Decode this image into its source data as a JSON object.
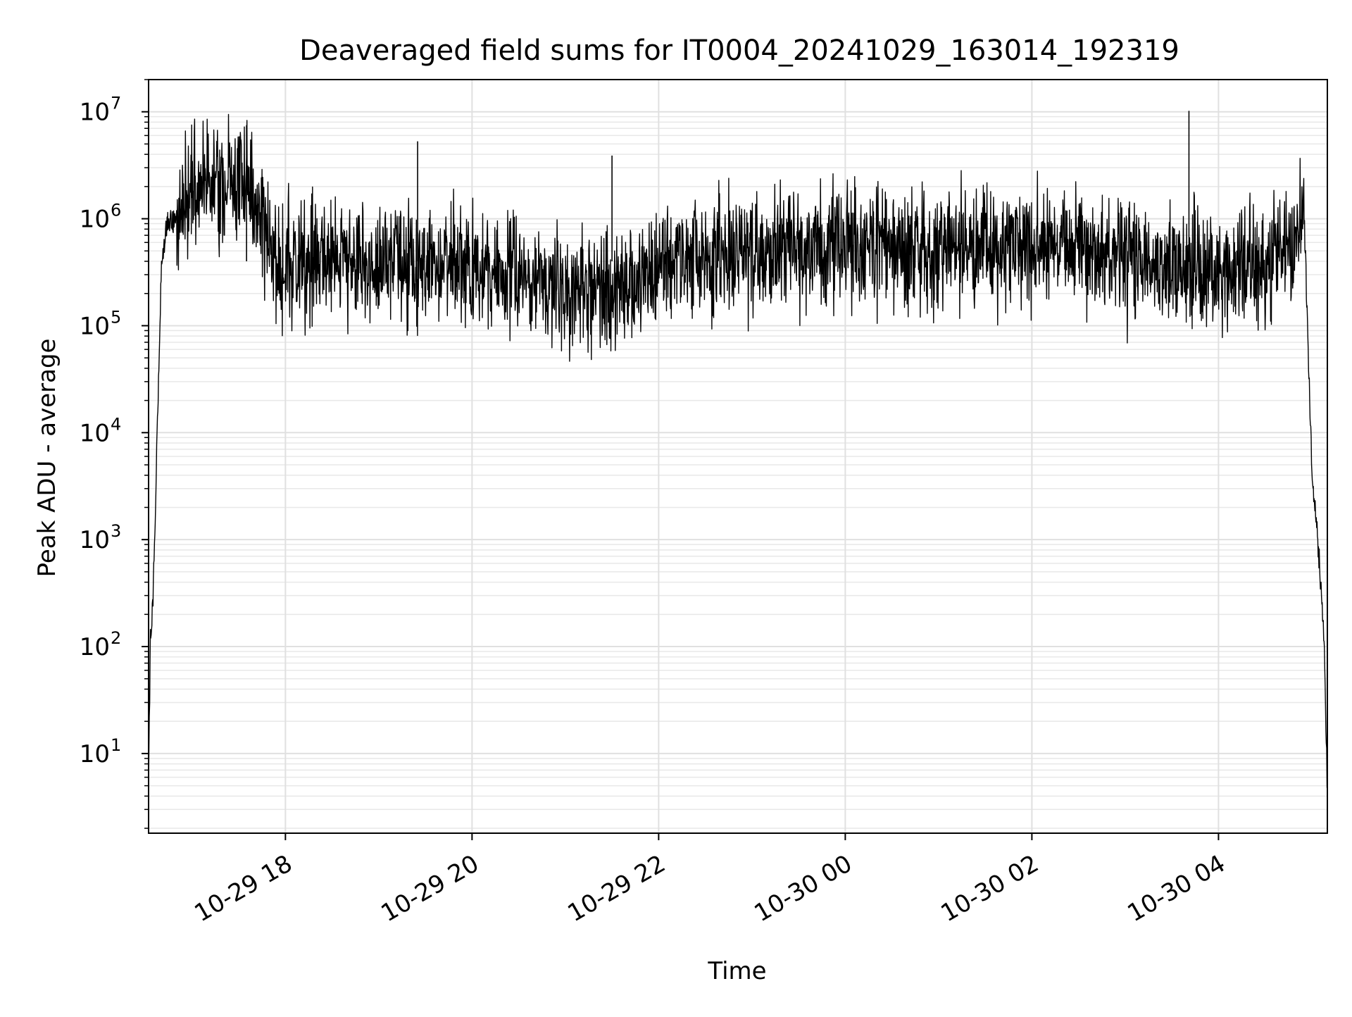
{
  "chart_data": {
    "type": "line",
    "title": "Deaveraged field sums for IT0004_20241029_163014_192319",
    "xlabel": "Time",
    "ylabel": "Peak ADU - average",
    "y_scale": "log",
    "ylim": [
      1.8,
      20000000
    ],
    "xlim": [
      "2024-10-29 16:32",
      "2024-10-30 05:10"
    ],
    "grid": "both (major and minor y)",
    "legend": "none",
    "line_color": "#000000",
    "x_ticks": [
      {
        "value": "2024-10-29 18:00",
        "label": "10-29 18"
      },
      {
        "value": "2024-10-29 20:00",
        "label": "10-29 20"
      },
      {
        "value": "2024-10-29 22:00",
        "label": "10-29 22"
      },
      {
        "value": "2024-10-30 00:00",
        "label": "10-30 00"
      },
      {
        "value": "2024-10-30 02:00",
        "label": "10-30 02"
      },
      {
        "value": "2024-10-30 04:00",
        "label": "10-30 04"
      }
    ],
    "y_ticks": [
      {
        "value": 10,
        "base": "10",
        "exp": "1"
      },
      {
        "value": 100,
        "base": "10",
        "exp": "2"
      },
      {
        "value": 1000,
        "base": "10",
        "exp": "3"
      },
      {
        "value": 10000,
        "base": "10",
        "exp": "4"
      },
      {
        "value": 100000,
        "base": "10",
        "exp": "5"
      },
      {
        "value": 1000000,
        "base": "10",
        "exp": "6"
      },
      {
        "value": 10000000,
        "base": "10",
        "exp": "7"
      }
    ],
    "series": [
      {
        "x": [
          "2024-10-29 16:32",
          "2024-10-29 16:33",
          "2024-10-29 16:35",
          "2024-10-29 16:37",
          "2024-10-29 16:40",
          "2024-10-29 16:43",
          "2024-10-29 16:46",
          "2024-10-29 16:50",
          "2024-10-29 16:55",
          "2024-10-29 17:00",
          "2024-10-29 17:10",
          "2024-10-29 17:20",
          "2024-10-29 17:30",
          "2024-10-29 17:40",
          "2024-10-29 17:45",
          "2024-10-29 17:50",
          "2024-10-29 18:00",
          "2024-10-29 18:30",
          "2024-10-29 19:00",
          "2024-10-29 19:30",
          "2024-10-29 20:00",
          "2024-10-29 20:30",
          "2024-10-29 21:00",
          "2024-10-29 21:30",
          "2024-10-29 22:00",
          "2024-10-29 22:30",
          "2024-10-29 23:00",
          "2024-10-29 23:30",
          "2024-10-30 00:00",
          "2024-10-30 00:30",
          "2024-10-30 01:00",
          "2024-10-30 01:30",
          "2024-10-30 02:00",
          "2024-10-30 02:30",
          "2024-10-30 03:00",
          "2024-10-30 03:30",
          "2024-10-30 04:00",
          "2024-10-30 04:30",
          "2024-10-30 04:45",
          "2024-10-30 04:55",
          "2024-10-30 05:00",
          "2024-10-30 05:05",
          "2024-10-30 05:08",
          "2024-10-30 05:10"
        ],
        "y": [
          4,
          100,
          300,
          5000,
          300000,
          800000,
          1000000,
          800000,
          1500000,
          2000000,
          2000000,
          2000000,
          2500000,
          1500000,
          800000,
          500000,
          400000,
          450000,
          400000,
          400000,
          350000,
          300000,
          250000,
          200000,
          350000,
          450000,
          450000,
          500000,
          600000,
          550000,
          500000,
          550000,
          600000,
          550000,
          450000,
          350000,
          300000,
          400000,
          600000,
          1200000,
          5000,
          600,
          100,
          4
        ],
        "spikes": [
          {
            "x": "2024-10-29 17:35",
            "y": 7500000
          },
          {
            "x": "2024-10-29 19:25",
            "y": 5300000
          },
          {
            "x": "2024-10-29 21:30",
            "y": 3900000
          },
          {
            "x": "2024-10-30 03:41",
            "y": 10200000
          }
        ]
      }
    ]
  }
}
